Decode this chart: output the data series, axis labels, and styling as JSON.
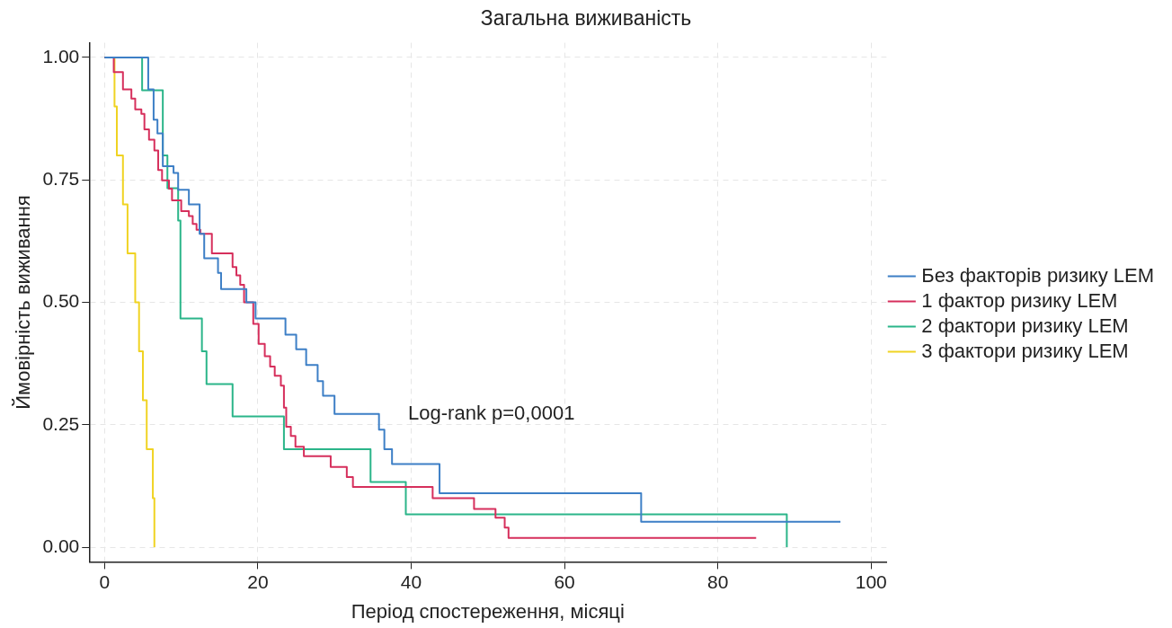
{
  "chart_data": {
    "type": "step",
    "title": "Загальна виживаність",
    "xlabel": "Період спостереження, місяці",
    "ylabel": "Ймовірність виживання",
    "xlim": [
      -2,
      102
    ],
    "xticks": [
      0,
      20,
      40,
      60,
      80,
      100
    ],
    "ylim": [
      -0.03,
      1.03
    ],
    "yticks": [
      {
        "value": 0,
        "label": "0.00"
      },
      {
        "value": 0.25,
        "label": "0.25"
      },
      {
        "value": 0.5,
        "label": "0.50"
      },
      {
        "value": 0.75,
        "label": "0.75"
      },
      {
        "value": 1,
        "label": "1.00"
      }
    ],
    "grid": true,
    "legend": "right",
    "marker": "none",
    "line_style": "solid",
    "annotations": [
      "Log-rank p=0,0001"
    ],
    "series": [
      {
        "name": "Без факторів ризику LEM",
        "color": "#3d7fc6",
        "x": [
          0,
          5.7,
          6.4,
          6.9,
          7.6,
          9.0,
          9.6,
          11,
          12.4,
          13,
          14.8,
          15.2,
          18.5,
          19.7,
          23.6,
          25,
          26.3,
          27.8,
          28.5,
          30,
          35.8,
          36.5,
          37.5,
          43.7,
          70,
          96
        ],
        "values": [
          1,
          0.935,
          0.873,
          0.845,
          0.778,
          0.764,
          0.73,
          0.7,
          0.64,
          0.59,
          0.56,
          0.527,
          0.5,
          0.467,
          0.434,
          0.404,
          0.372,
          0.339,
          0.309,
          0.272,
          0.24,
          0.2,
          0.17,
          0.11,
          0.052,
          0.052
        ]
      },
      {
        "name": "1 фактор ризику LEM",
        "color": "#d62f5c",
        "x": [
          0,
          1.2,
          2.4,
          3.5,
          4,
          4.8,
          5.2,
          5.8,
          6.5,
          7,
          7.5,
          8.4,
          8.8,
          10,
          11,
          11.5,
          12,
          12.5,
          14,
          16.7,
          17.2,
          17.7,
          18.2,
          19.4,
          20.1,
          20.9,
          21.6,
          22.2,
          23,
          23.4,
          23.7,
          24.3,
          24.9,
          26,
          29.5,
          31.6,
          32.4,
          42.8,
          48.2,
          51,
          52.2,
          52.7,
          85
        ],
        "values": [
          1,
          0.97,
          0.935,
          0.916,
          0.894,
          0.885,
          0.853,
          0.832,
          0.81,
          0.77,
          0.749,
          0.732,
          0.708,
          0.686,
          0.676,
          0.66,
          0.648,
          0.64,
          0.6,
          0.572,
          0.555,
          0.536,
          0.5,
          0.456,
          0.415,
          0.39,
          0.369,
          0.35,
          0.33,
          0.285,
          0.246,
          0.227,
          0.205,
          0.186,
          0.164,
          0.143,
          0.123,
          0.1,
          0.078,
          0.06,
          0.04,
          0.019,
          0.019
        ]
      },
      {
        "name": "2 фактори ризику LEM",
        "color": "#2bb589",
        "x": [
          0,
          4.9,
          7.6,
          8.2,
          9.6,
          9.9,
          12.7,
          13.3,
          16.7,
          23.4,
          34.7,
          39.3,
          89
        ],
        "values": [
          1,
          0.933,
          0.8,
          0.733,
          0.667,
          0.467,
          0.4,
          0.333,
          0.267,
          0.2,
          0.133,
          0.067,
          0
        ]
      },
      {
        "name": "3 фактори ризику LEM",
        "color": "#f0d322",
        "x": [
          0,
          1.3,
          1.6,
          2.4,
          3.0,
          4.0,
          4.5,
          5.0,
          5.5,
          6.3,
          6.5
        ],
        "values": [
          1,
          0.9,
          0.8,
          0.7,
          0.6,
          0.5,
          0.4,
          0.3,
          0.2,
          0.1,
          0
        ]
      }
    ]
  }
}
